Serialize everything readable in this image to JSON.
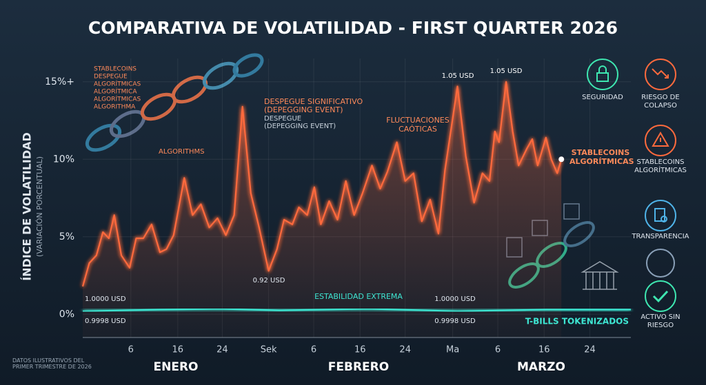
{
  "chart_data": {
    "type": "line",
    "title": "COMPARATIVA DE VOLATILIDAD - FIRST QUARTER 2026",
    "y_label": "ÍNDICE DE VOLATILIDAD",
    "y_sublabel": "(VARIACIÓN PORCENTUAL)",
    "xlim": [
      -3.1,
      89.2
    ],
    "ylim": [
      -1.5,
      16.5
    ],
    "yticks": [
      {
        "value": 0,
        "label": "0%"
      },
      {
        "value": 5,
        "label": "5%"
      },
      {
        "value": 10,
        "label": "10%"
      },
      {
        "value": 15,
        "label": "15%+"
      }
    ],
    "xticks": [
      {
        "value": 5.0,
        "label": "6"
      },
      {
        "value": 12.9,
        "label": "16"
      },
      {
        "value": 20.4,
        "label": "24"
      },
      {
        "value": 28.2,
        "label": "Sek"
      },
      {
        "value": 35.8,
        "label": "6"
      },
      {
        "value": 43.6,
        "label": "16"
      },
      {
        "value": 51.2,
        "label": "24"
      },
      {
        "value": 59.2,
        "label": "Ma"
      },
      {
        "value": 66.8,
        "label": "6"
      },
      {
        "value": 74.6,
        "label": "16"
      },
      {
        "value": 82.3,
        "label": "24"
      }
    ],
    "months": [
      "ENERO",
      "FEBRERO",
      "MARZO"
    ],
    "grid": true,
    "series": [
      {
        "name": "STABLECOINS ALGORÍTMICAS",
        "color": "#ff6a3d",
        "x": [
          -3.1,
          -2.0,
          -0.8,
          0.3,
          1.3,
          2.2,
          3.4,
          4.8,
          5.9,
          7.1,
          8.5,
          9.9,
          11.0,
          12.2,
          14.0,
          15.4,
          16.8,
          18.2,
          19.6,
          21.0,
          22.4,
          23.8,
          25.2,
          26.6,
          28.2,
          29.6,
          30.8,
          32.2,
          33.3,
          34.7,
          35.9,
          37.0,
          38.4,
          39.8,
          41.2,
          42.6,
          44.0,
          45.6,
          47.0,
          48.2,
          49.8,
          51.2,
          52.6,
          54.0,
          55.4,
          56.8,
          57.9,
          60.0,
          61.4,
          62.8,
          64.2,
          65.4,
          66.3,
          67.0,
          68.2,
          69.3,
          70.3,
          71.7,
          72.6,
          73.5,
          74.9,
          75.8,
          76.8,
          77.5
        ],
        "values": [
          1.8,
          3.3,
          3.8,
          5.3,
          4.9,
          6.4,
          3.8,
          3.0,
          4.9,
          4.9,
          5.8,
          4.0,
          4.2,
          5.1,
          8.8,
          6.4,
          7.1,
          5.6,
          6.2,
          5.1,
          6.4,
          13.4,
          7.8,
          5.6,
          2.8,
          4.2,
          6.1,
          5.8,
          6.9,
          6.4,
          8.2,
          5.8,
          7.3,
          6.1,
          8.6,
          6.4,
          7.8,
          9.6,
          8.1,
          9.2,
          11.1,
          8.6,
          9.1,
          6.0,
          7.4,
          5.2,
          9.3,
          14.7,
          10.2,
          7.2,
          9.1,
          8.6,
          11.8,
          11.1,
          15.0,
          11.8,
          9.6,
          10.7,
          11.3,
          9.6,
          11.4,
          10.0,
          9.1,
          10.0
        ]
      },
      {
        "name": "T-BILLS TOKENIZADOS",
        "color": "#3ee6d2",
        "x": [
          -3.1,
          10,
          20,
          30,
          45,
          60,
          75,
          89.2
        ],
        "values": [
          0.2,
          0.3,
          0.35,
          0.25,
          0.35,
          0.2,
          0.3,
          0.3
        ]
      }
    ],
    "annotations": {
      "chain_labels": [
        "STABLECOINS",
        "DESPEGUE",
        "ALGORÍTMICAS",
        "ALGORÍTMICA",
        "ALGORÍTMICAS",
        "ALGORITHMA"
      ],
      "chain_caption": "ALGORITHMS",
      "depeg_title": [
        "DESPEGUE SIGNIFICATIVO",
        "(DEPEGGING EVENT)"
      ],
      "depeg_sub": [
        "DESPEGUE",
        "(DEPEGGING EVENT)"
      ],
      "chaos": [
        "FLUCTUACIONES",
        "CAÓTICAS"
      ],
      "peak1": "1.05 USD",
      "peak2": "1.05 USD",
      "low": "0.92 USD",
      "tbill_high1": "1.0000 USD",
      "tbill_low1": "0.9998 USD",
      "tbill_high2": "1.0000 USD",
      "tbill_low2": "0.9998 USD",
      "stability": "ESTABILIDAD EXTREMA"
    },
    "icons": [
      "SEGURIDAD",
      "RIESGO DE COLAPSO",
      "STABLECOINS ALGORÍTMICAS",
      "TRANSPARENCIA",
      "ACTIVO SIN RIESGO"
    ],
    "footer": [
      "DATOS ILUSTRATIVOS DEL",
      "PRIMER TRIMESTRE DE 2026"
    ]
  }
}
